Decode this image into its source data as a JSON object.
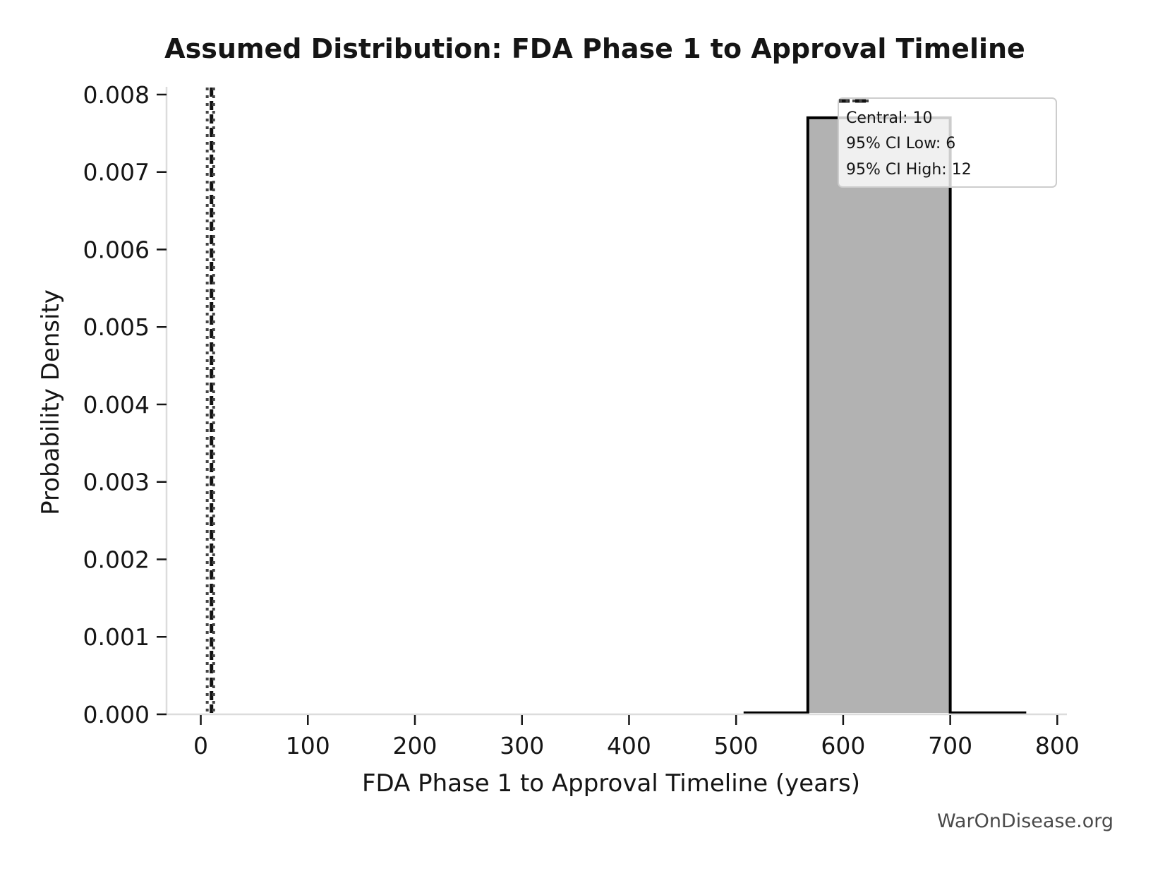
{
  "watermark": "WarOnDisease.org",
  "chart_data": {
    "type": "histogram",
    "title": "Assumed Distribution: FDA Phase 1 to Approval Timeline",
    "xlabel": "FDA Phase 1 to Approval Timeline (years)",
    "ylabel": "Probability Density",
    "xlim": [
      -32,
      809
    ],
    "ylim": [
      0,
      0.0081
    ],
    "grid": false,
    "xticks": [
      {
        "value": 0,
        "label": "0"
      },
      {
        "value": 100,
        "label": "100"
      },
      {
        "value": 200,
        "label": "200"
      },
      {
        "value": 300,
        "label": "300"
      },
      {
        "value": 400,
        "label": "400"
      },
      {
        "value": 500,
        "label": "500"
      },
      {
        "value": 600,
        "label": "600"
      },
      {
        "value": 700,
        "label": "700"
      },
      {
        "value": 800,
        "label": "800"
      }
    ],
    "yticks": [
      {
        "value": 0.0,
        "label": "0.000"
      },
      {
        "value": 0.001,
        "label": "0.001"
      },
      {
        "value": 0.002,
        "label": "0.002"
      },
      {
        "value": 0.003,
        "label": "0.003"
      },
      {
        "value": 0.004,
        "label": "0.004"
      },
      {
        "value": 0.005,
        "label": "0.005"
      },
      {
        "value": 0.006,
        "label": "0.006"
      },
      {
        "value": 0.007,
        "label": "0.007"
      },
      {
        "value": 0.008,
        "label": "0.008"
      }
    ],
    "bins": [
      {
        "x_start": 567,
        "x_end": 700,
        "density": 0.0077
      }
    ],
    "outline_x_range": [
      507,
      771
    ],
    "vlines": [
      {
        "name": "central",
        "x": 10,
        "style": "dashed",
        "color": "#111111"
      },
      {
        "name": "ci-low",
        "x": 6,
        "style": "dotted",
        "color": "#444444"
      },
      {
        "name": "ci-high",
        "x": 12,
        "style": "dotted",
        "color": "#444444"
      }
    ],
    "legend": {
      "position": "upper right",
      "entries": [
        {
          "label": "Central: 10",
          "style": "dashed",
          "color": "#111111"
        },
        {
          "label": "95% CI Low: 6",
          "style": "dotted",
          "color": "#444444"
        },
        {
          "label": "95% CI High: 12",
          "style": "dotted",
          "color": "#444444"
        }
      ]
    },
    "colors": {
      "bar_fill": "#b2b2b2",
      "bar_edge": "#000000",
      "spine": "#dcdcdc",
      "tick": "#151515",
      "watermark": "#4a4a4a",
      "background": "#ffffff"
    }
  }
}
